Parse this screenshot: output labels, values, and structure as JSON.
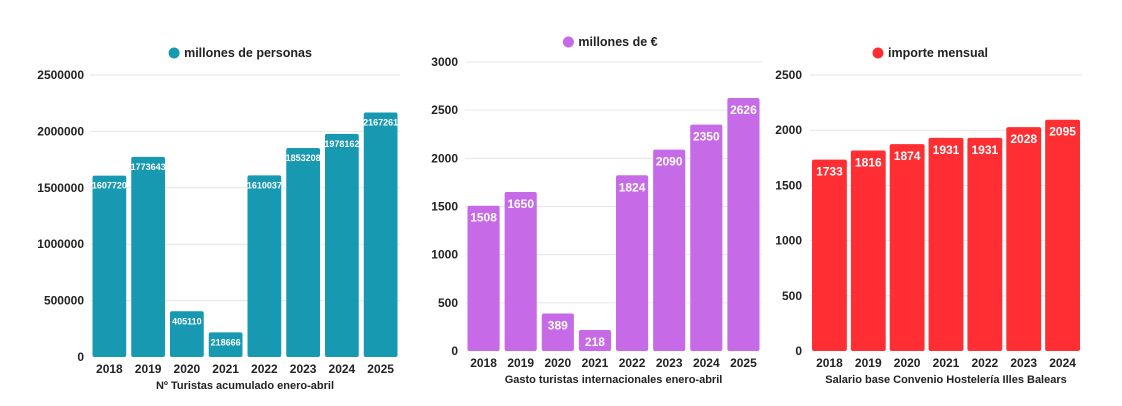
{
  "chart_data": [
    {
      "type": "bar",
      "legend": "millones de personas",
      "legend_position": "top-center",
      "color": "#1799b1",
      "xlabel": "Nº Turistas acumulado enero-abril",
      "categories": [
        "2018",
        "2019",
        "2020",
        "2021",
        "2022",
        "2023",
        "2024",
        "2025"
      ],
      "values": [
        1607720,
        1773643,
        405110,
        218666,
        1610037,
        1853208,
        1978162,
        2167261
      ],
      "ylim": [
        0,
        2500000
      ],
      "yticks": [
        0,
        500000,
        1000000,
        1500000,
        2000000,
        2500000
      ],
      "grid": true
    },
    {
      "type": "bar",
      "legend": "millones de €",
      "legend_position": "top-center",
      "color": "#c76ae8",
      "xlabel": "Gasto turistas internacionales enero-abril",
      "categories": [
        "2018",
        "2019",
        "2020",
        "2021",
        "2022",
        "2023",
        "2024",
        "2025"
      ],
      "values": [
        1508,
        1650,
        389,
        218,
        1824,
        2090,
        2350,
        2626
      ],
      "ylim": [
        0,
        3000
      ],
      "yticks": [
        0,
        500,
        1000,
        1500,
        2000,
        2500,
        3000
      ],
      "grid": true
    },
    {
      "type": "bar",
      "legend": "importe mensual",
      "legend_position": "top-center",
      "color": "#ff2e32",
      "xlabel": "Salario base Convenio Hostelería Illes Balears",
      "categories": [
        "2018",
        "2019",
        "2020",
        "2021",
        "2022",
        "2023",
        "2024"
      ],
      "values": [
        1733,
        1816,
        1874,
        1931,
        1931,
        2028,
        2095
      ],
      "ylim": [
        0,
        2500
      ],
      "yticks": [
        0,
        500,
        1000,
        1500,
        2000,
        2500
      ],
      "grid": true
    }
  ]
}
